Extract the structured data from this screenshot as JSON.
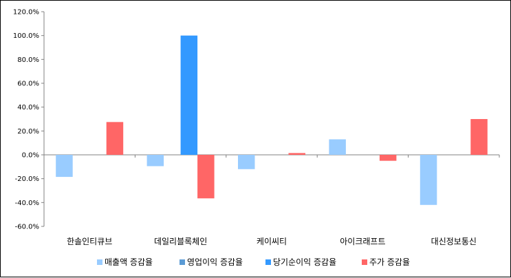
{
  "chart_data": {
    "type": "bar",
    "categories": [
      "한솔인티큐브",
      "데일리블록체인",
      "케이씨티",
      "아이크래프트",
      "대신정보통신"
    ],
    "series": [
      {
        "name": "매출액 증감율",
        "color": "#99CCFF",
        "values": [
          -18.5,
          -9.5,
          -12.0,
          13.0,
          -42.0
        ]
      },
      {
        "name": "영업이익 증감율",
        "color": "#5B9BD5",
        "values": [
          0,
          0,
          0,
          0,
          0
        ]
      },
      {
        "name": "당기순이익 증감율",
        "color": "#3399FF",
        "values": [
          0,
          100.0,
          0,
          0,
          0
        ]
      },
      {
        "name": "주가 증감율",
        "color": "#FF6666",
        "values": [
          27.5,
          -36.5,
          1.5,
          -5.0,
          30.0
        ]
      }
    ],
    "yticks": [
      "120.0%",
      "100.0%",
      "80.0%",
      "60.0%",
      "40.0%",
      "20.0%",
      "0.0%",
      "-20.0%",
      "-40.0%",
      "-60.0%"
    ],
    "ylim": [
      -60,
      120
    ],
    "grid": false,
    "legend": "bottom",
    "title": "",
    "xlabel": "",
    "ylabel": ""
  }
}
